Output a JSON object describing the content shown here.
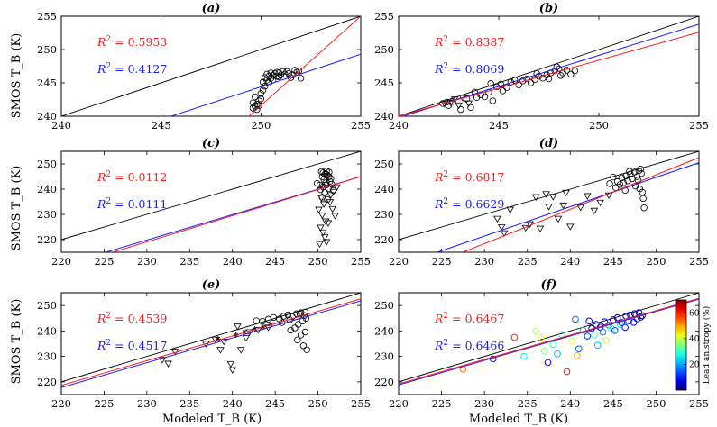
{
  "figure": {
    "ylabel": "SMOS T_B (K)",
    "xlabel": "Modeled T_B (K)",
    "colorbar": {
      "label": "Lead anistropy (%)",
      "ticks": [
        20,
        40,
        60
      ],
      "range": [
        0,
        70
      ]
    }
  },
  "chart_data": [
    {
      "id": "a",
      "title": "(a)",
      "type": "scatter",
      "xlim": [
        240,
        255
      ],
      "ylim": [
        240,
        255
      ],
      "xticks": [
        240,
        245,
        250,
        255
      ],
      "yticks": [
        240,
        245,
        250,
        255
      ],
      "r2_red": "0.5953",
      "r2_blue": "0.4127",
      "fit_red": [
        [
          249.4,
          240
        ],
        [
          255,
          255
        ]
      ],
      "fit_blue": [
        [
          245.5,
          240
        ],
        [
          255,
          249.3
        ]
      ],
      "points": [
        [
          249.6,
          242.0
        ],
        [
          249.7,
          241.5
        ],
        [
          249.8,
          241.8
        ],
        [
          249.9,
          242.3
        ],
        [
          249.6,
          241.2
        ],
        [
          249.8,
          241.0
        ],
        [
          249.9,
          241.6
        ],
        [
          250.0,
          242.6
        ],
        [
          249.7,
          242.9
        ],
        [
          250.0,
          243.4
        ],
        [
          250.1,
          243.9
        ],
        [
          250.2,
          244.5
        ],
        [
          250.1,
          245.1
        ],
        [
          250.3,
          245.4
        ],
        [
          250.2,
          245.8
        ],
        [
          250.4,
          246.0
        ],
        [
          250.3,
          246.3
        ],
        [
          250.5,
          246.5
        ],
        [
          250.6,
          246.1
        ],
        [
          250.5,
          245.7
        ],
        [
          250.7,
          246.4
        ],
        [
          250.8,
          246.0
        ],
        [
          250.9,
          246.5
        ],
        [
          251.0,
          246.2
        ],
        [
          250.8,
          246.6
        ],
        [
          251.1,
          246.7
        ],
        [
          251.2,
          246.3
        ],
        [
          250.4,
          245.0
        ],
        [
          250.6,
          245.4
        ],
        [
          250.9,
          245.9
        ],
        [
          251.4,
          246.4
        ],
        [
          251.3,
          246.7
        ],
        [
          251.7,
          246.9
        ],
        [
          251.8,
          246.6
        ],
        [
          251.6,
          246.2
        ],
        [
          251.9,
          246.8
        ],
        [
          251.5,
          245.8
        ],
        [
          252.0,
          245.7
        ]
      ]
    },
    {
      "id": "b",
      "title": "(b)",
      "type": "scatter",
      "xlim": [
        240,
        255
      ],
      "ylim": [
        240,
        255
      ],
      "xticks": [
        240,
        245,
        250,
        255
      ],
      "yticks": [
        240,
        245,
        250,
        255
      ],
      "r2_red": "0.8387",
      "r2_blue": "0.8069",
      "fit_red": [
        [
          240,
          240.0
        ],
        [
          255,
          252.6
        ]
      ],
      "fit_blue": [
        [
          240,
          239.8
        ],
        [
          255,
          253.8
        ]
      ],
      "points": [
        [
          242.2,
          241.9
        ],
        [
          242.4,
          242.1
        ],
        [
          242.5,
          241.6
        ],
        [
          242.7,
          242.2
        ],
        [
          243.1,
          241.0
        ],
        [
          243.4,
          242.6
        ],
        [
          243.6,
          241.3
        ],
        [
          243.9,
          242.8
        ],
        [
          244.1,
          243.2
        ],
        [
          244.3,
          242.9
        ],
        [
          244.5,
          243.6
        ],
        [
          244.7,
          242.3
        ],
        [
          244.9,
          244.4
        ],
        [
          245.1,
          244.8
        ],
        [
          245.2,
          243.8
        ],
        [
          245.4,
          244.3
        ],
        [
          245.6,
          245.1
        ],
        [
          245.8,
          245.4
        ],
        [
          246.0,
          244.7
        ],
        [
          246.2,
          245.3
        ],
        [
          246.4,
          245.6
        ],
        [
          246.6,
          245.0
        ],
        [
          246.8,
          245.5
        ],
        [
          247.0,
          246.0
        ],
        [
          247.2,
          245.7
        ],
        [
          247.4,
          246.2
        ],
        [
          247.6,
          246.5
        ],
        [
          247.8,
          246.8
        ],
        [
          248.0,
          247.1
        ],
        [
          248.2,
          246.5
        ],
        [
          248.4,
          246.9
        ],
        [
          248.6,
          246.3
        ],
        [
          248.8,
          246.8
        ],
        [
          247.9,
          247.4
        ],
        [
          248.1,
          246.1
        ],
        [
          247.5,
          245.6
        ],
        [
          246.9,
          246.4
        ],
        [
          243.8,
          243.6
        ],
        [
          244.6,
          244.9
        ]
      ],
      "tri": [
        [
          242.3,
          241.8
        ],
        [
          242.6,
          242.0
        ],
        [
          243.0,
          241.6
        ],
        [
          242.8,
          242.5
        ],
        [
          243.5,
          241.9
        ],
        [
          243.2,
          242.7
        ]
      ]
    },
    {
      "id": "c",
      "title": "(c)",
      "type": "scatter",
      "xlim": [
        220,
        255
      ],
      "ylim": [
        215,
        255
      ],
      "xticks": [
        220,
        225,
        230,
        235,
        240,
        245,
        250,
        255
      ],
      "yticks": [
        220,
        230,
        240,
        250
      ],
      "r2_red": "0.0112",
      "r2_blue": "0.0111",
      "fit_red": [
        [
          226,
          215
        ],
        [
          255,
          245
        ]
      ],
      "fit_blue": [
        [
          225.2,
          215
        ],
        [
          255,
          245
        ]
      ],
      "points": [
        [
          250.4,
          247.0
        ],
        [
          250.6,
          246.5
        ],
        [
          250.8,
          245.8
        ],
        [
          251.0,
          247.2
        ],
        [
          250.5,
          244.9
        ],
        [
          250.7,
          243.8
        ],
        [
          250.9,
          242.5
        ],
        [
          251.1,
          245.6
        ],
        [
          251.3,
          246.8
        ],
        [
          251.5,
          244.2
        ],
        [
          250.6,
          240.9
        ],
        [
          251.0,
          241.7
        ],
        [
          250.3,
          239.8
        ],
        [
          251.2,
          240.2
        ],
        [
          251.4,
          243.1
        ],
        [
          250.8,
          238.7
        ],
        [
          251.6,
          242.0
        ],
        [
          251.8,
          239.5
        ],
        [
          250.2,
          241.6
        ],
        [
          249.9,
          242.3
        ],
        [
          250.5,
          236.8
        ],
        [
          251.1,
          235.9
        ],
        [
          250.9,
          246.1
        ],
        [
          251.3,
          244.9
        ]
      ],
      "tri": [
        [
          250.4,
          236.5
        ],
        [
          250.7,
          234.0
        ],
        [
          250.1,
          231.8
        ],
        [
          250.5,
          229.6
        ],
        [
          250.9,
          227.2
        ],
        [
          250.3,
          224.7
        ],
        [
          250.6,
          222.8
        ],
        [
          250.8,
          220.9
        ],
        [
          251.0,
          219.0
        ],
        [
          250.2,
          218.2
        ],
        [
          251.4,
          234.8
        ],
        [
          251.7,
          232.1
        ],
        [
          252.0,
          229.4
        ],
        [
          251.5,
          237.6
        ],
        [
          251.8,
          238.9
        ],
        [
          252.2,
          240.7
        ],
        [
          251.2,
          226.5
        ]
      ]
    },
    {
      "id": "d",
      "title": "(d)",
      "type": "scatter",
      "xlim": [
        220,
        255
      ],
      "ylim": [
        215,
        255
      ],
      "xticks": [
        220,
        225,
        230,
        235,
        240,
        245,
        250,
        255
      ],
      "yticks": [
        220,
        230,
        240,
        250
      ],
      "r2_red": "0.6817",
      "r2_blue": "0.6629",
      "fit_red": [
        [
          227.5,
          215
        ],
        [
          255,
          252.5
        ]
      ],
      "fit_blue": [
        [
          224.5,
          215
        ],
        [
          255,
          250.5
        ]
      ],
      "points": [
        [
          245.5,
          243.0
        ],
        [
          246.0,
          244.5
        ],
        [
          246.5,
          245.2
        ],
        [
          247.0,
          246.0
        ],
        [
          247.5,
          246.8
        ],
        [
          248.0,
          247.3
        ],
        [
          248.3,
          246.2
        ],
        [
          247.8,
          245.0
        ],
        [
          247.2,
          244.1
        ],
        [
          246.7,
          243.3
        ],
        [
          246.2,
          242.5
        ],
        [
          245.8,
          241.8
        ],
        [
          245.3,
          240.6
        ],
        [
          247.6,
          241.2
        ],
        [
          248.1,
          240.1
        ],
        [
          248.4,
          238.8
        ],
        [
          248.5,
          236.3
        ],
        [
          248.6,
          232.6
        ],
        [
          247.9,
          243.6
        ],
        [
          246.9,
          247.1
        ],
        [
          248.2,
          248.0
        ],
        [
          245.0,
          244.8
        ],
        [
          244.6,
          242.2
        ],
        [
          246.4,
          239.5
        ]
      ],
      "tri": [
        [
          231.5,
          228.2
        ],
        [
          232.0,
          224.9
        ],
        [
          232.3,
          222.5
        ],
        [
          233.0,
          231.8
        ],
        [
          234.8,
          224.6
        ],
        [
          235.3,
          226.1
        ],
        [
          236.5,
          224.3
        ],
        [
          237.2,
          238.0
        ],
        [
          238.0,
          236.9
        ],
        [
          238.6,
          228.2
        ],
        [
          239.2,
          233.5
        ],
        [
          240.0,
          225.1
        ],
        [
          241.2,
          232.7
        ],
        [
          242.0,
          237.2
        ],
        [
          242.8,
          231.4
        ],
        [
          243.5,
          234.6
        ],
        [
          244.5,
          237.5
        ],
        [
          239.5,
          238.5
        ],
        [
          236.0,
          236.8
        ],
        [
          237.5,
          233.0
        ]
      ]
    },
    {
      "id": "e",
      "title": "(e)",
      "type": "scatter",
      "xlim": [
        220,
        255
      ],
      "ylim": [
        215,
        255
      ],
      "xticks": [
        220,
        225,
        230,
        235,
        240,
        245,
        250,
        255
      ],
      "yticks": [
        220,
        230,
        240,
        250
      ],
      "r2_red": "0.4539",
      "r2_blue": "0.4517",
      "fit_red": [
        [
          220,
          218.6
        ],
        [
          255,
          252.6
        ]
      ],
      "fit_blue": [
        [
          220,
          217.8
        ],
        [
          255,
          251.8
        ]
      ],
      "points": [
        [
          243.5,
          243.8
        ],
        [
          244.2,
          244.6
        ],
        [
          244.8,
          245.3
        ],
        [
          245.5,
          244.7
        ],
        [
          246.0,
          245.8
        ],
        [
          246.5,
          246.3
        ],
        [
          247.0,
          245.6
        ],
        [
          247.5,
          246.8
        ],
        [
          248.0,
          247.2
        ],
        [
          248.4,
          246.1
        ],
        [
          248.6,
          245.0
        ],
        [
          248.2,
          243.9
        ],
        [
          247.7,
          242.6
        ],
        [
          247.3,
          241.2
        ],
        [
          246.8,
          240.3
        ],
        [
          248.5,
          239.6
        ],
        [
          248.0,
          238.4
        ],
        [
          247.6,
          236.5
        ],
        [
          248.3,
          234.2
        ],
        [
          248.7,
          232.6
        ],
        [
          245.8,
          243.3
        ],
        [
          246.7,
          244.4
        ],
        [
          247.9,
          246.6
        ],
        [
          248.5,
          247.4
        ],
        [
          242.8,
          244.0
        ]
      ],
      "tri": [
        [
          231.8,
          228.6
        ],
        [
          232.5,
          227.1
        ],
        [
          233.3,
          231.8
        ],
        [
          236.9,
          234.9
        ],
        [
          238.0,
          236.6
        ],
        [
          238.6,
          232.5
        ],
        [
          239.0,
          235.8
        ],
        [
          239.8,
          227.0
        ],
        [
          240.0,
          224.6
        ],
        [
          241.0,
          232.5
        ],
        [
          241.6,
          237.2
        ],
        [
          242.0,
          239.5
        ],
        [
          243.0,
          240.3
        ],
        [
          240.6,
          241.7
        ],
        [
          244.2,
          241.3
        ]
      ],
      "star": [
        [
          238.3,
          236.9
        ],
        [
          240.4,
          238.4
        ],
        [
          241.4,
          239.6
        ],
        [
          242.6,
          240.8
        ],
        [
          243.6,
          241.6
        ],
        [
          244.5,
          242.6
        ]
      ]
    },
    {
      "id": "f",
      "title": "(f)",
      "type": "scatter",
      "xlim": [
        220,
        255
      ],
      "ylim": [
        215,
        255
      ],
      "xticks": [
        220,
        225,
        230,
        235,
        240,
        245,
        250,
        255
      ],
      "yticks": [
        220,
        230,
        240,
        250
      ],
      "r2_red": "0.6467",
      "r2_blue": "0.6466",
      "fit_red": [
        [
          220,
          219.2
        ],
        [
          255,
          252.8
        ]
      ],
      "fit_blue": [
        [
          220,
          218.8
        ],
        [
          255,
          252.5
        ]
      ],
      "cpoints": [
        [
          227.5,
          225.0,
          55
        ],
        [
          231.0,
          229.0,
          10
        ],
        [
          233.5,
          237.5,
          58
        ],
        [
          234.6,
          230.0,
          25
        ],
        [
          236.0,
          240.0,
          38
        ],
        [
          236.6,
          237.4,
          45
        ],
        [
          237.0,
          232.0,
          35
        ],
        [
          237.4,
          227.6,
          8
        ],
        [
          238.0,
          234.6,
          28
        ],
        [
          238.5,
          231.0,
          22
        ],
        [
          239.0,
          238.6,
          30
        ],
        [
          239.6,
          224.0,
          60
        ],
        [
          240.2,
          236.0,
          42
        ],
        [
          240.8,
          230.3,
          50
        ],
        [
          241.0,
          233.0,
          15
        ],
        [
          241.5,
          240.3,
          20
        ],
        [
          242.0,
          238.0,
          12
        ],
        [
          242.5,
          241.0,
          5
        ],
        [
          243.0,
          242.6,
          8
        ],
        [
          243.5,
          241.5,
          4
        ],
        [
          244.0,
          243.6,
          6
        ],
        [
          244.5,
          242.3,
          18
        ],
        [
          245.0,
          244.4,
          3
        ],
        [
          245.5,
          245.2,
          4
        ],
        [
          246.0,
          243.3,
          6
        ],
        [
          246.5,
          245.8,
          3
        ],
        [
          247.0,
          246.3,
          5
        ],
        [
          247.5,
          246.8,
          4
        ],
        [
          248.0,
          247.2,
          3
        ],
        [
          248.4,
          246.0,
          2
        ],
        [
          247.8,
          244.8,
          7
        ],
        [
          246.8,
          244.0,
          12
        ],
        [
          245.8,
          242.6,
          25
        ],
        [
          244.8,
          241.0,
          28
        ],
        [
          243.8,
          239.6,
          18
        ],
        [
          242.8,
          238.4,
          32
        ],
        [
          245.2,
          240.2,
          14
        ],
        [
          246.4,
          241.4,
          10
        ],
        [
          247.4,
          243.4,
          8
        ],
        [
          248.2,
          245.4,
          5
        ],
        [
          244.2,
          236.2,
          40
        ],
        [
          243.2,
          234.4,
          22
        ],
        [
          240.6,
          244.6,
          16
        ],
        [
          242.2,
          243.9,
          9
        ]
      ]
    }
  ]
}
